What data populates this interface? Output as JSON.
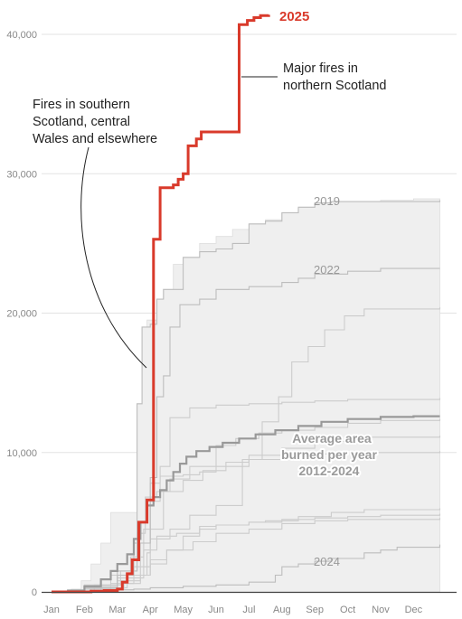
{
  "chart_data": {
    "type": "line",
    "step": true,
    "title": "",
    "xlabel": "",
    "ylabel": "",
    "x_categories": [
      "Jan",
      "Feb",
      "Mar",
      "Apr",
      "May",
      "Jun",
      "Jul",
      "Aug",
      "Sep",
      "Oct",
      "Nov",
      "Dec"
    ],
    "ylim": [
      0,
      42000
    ],
    "y_ticks": [
      0,
      10000,
      20000,
      30000,
      40000
    ],
    "y_tick_labels": [
      "0",
      "10,000",
      "20,000",
      "30,000",
      "40,000"
    ],
    "grid": "horizontal",
    "range_band": {
      "upper": [
        [
          0,
          0
        ],
        [
          0.3,
          50
        ],
        [
          0.6,
          200
        ],
        [
          0.9,
          800
        ],
        [
          1.2,
          2000
        ],
        [
          1.5,
          3500
        ],
        [
          1.8,
          5700
        ],
        [
          2.3,
          5700
        ],
        [
          2.6,
          13500
        ],
        [
          2.75,
          19000
        ],
        [
          2.9,
          19500
        ],
        [
          3.2,
          21000
        ],
        [
          3.4,
          21700
        ],
        [
          3.7,
          23500
        ],
        [
          4.0,
          24000
        ],
        [
          4.5,
          25000
        ],
        [
          5.0,
          25500
        ],
        [
          5.5,
          26000
        ],
        [
          6.0,
          26400
        ],
        [
          6.5,
          26700
        ],
        [
          7.0,
          27200
        ],
        [
          7.5,
          27600
        ],
        [
          8.0,
          27900
        ],
        [
          8.5,
          28000
        ],
        [
          9.0,
          28000
        ],
        [
          10.0,
          28100
        ],
        [
          11.0,
          28200
        ],
        [
          11.8,
          28200
        ]
      ],
      "lower": [
        [
          0,
          0
        ],
        [
          11.8,
          0
        ]
      ]
    },
    "series": [
      {
        "name": "2025",
        "color": "#d93a2b",
        "values": [
          [
            0,
            0
          ],
          [
            1.2,
            50
          ],
          [
            1.6,
            100
          ],
          [
            2.0,
            200
          ],
          [
            2.15,
            700
          ],
          [
            2.3,
            1300
          ],
          [
            2.45,
            2300
          ],
          [
            2.65,
            5000
          ],
          [
            2.9,
            6600
          ],
          [
            3.1,
            25300
          ],
          [
            3.3,
            29000
          ],
          [
            3.7,
            29200
          ],
          [
            3.85,
            29600
          ],
          [
            4.0,
            30000
          ],
          [
            4.15,
            32000
          ],
          [
            4.4,
            32500
          ],
          [
            4.55,
            33000
          ],
          [
            5.0,
            33000
          ],
          [
            5.3,
            33000
          ],
          [
            5.6,
            33000
          ],
          [
            5.7,
            40700
          ],
          [
            5.95,
            41000
          ],
          [
            6.15,
            41200
          ],
          [
            6.35,
            41350
          ],
          [
            6.6,
            41400
          ]
        ]
      },
      {
        "name": "Average area burned per year 2012-2024",
        "color": "#999999",
        "values": [
          [
            0,
            0
          ],
          [
            0.5,
            100
          ],
          [
            1.0,
            400
          ],
          [
            1.5,
            900
          ],
          [
            1.8,
            1500
          ],
          [
            2.0,
            2000
          ],
          [
            2.3,
            2700
          ],
          [
            2.5,
            3800
          ],
          [
            2.7,
            5000
          ],
          [
            2.9,
            6200
          ],
          [
            3.1,
            6800
          ],
          [
            3.3,
            7300
          ],
          [
            3.5,
            8000
          ],
          [
            3.7,
            8600
          ],
          [
            3.9,
            9200
          ],
          [
            4.1,
            9700
          ],
          [
            4.4,
            10100
          ],
          [
            4.8,
            10400
          ],
          [
            5.2,
            10700
          ],
          [
            5.7,
            11000
          ],
          [
            6.2,
            11300
          ],
          [
            6.8,
            11600
          ],
          [
            7.5,
            11900
          ],
          [
            8.2,
            12200
          ],
          [
            9.0,
            12400
          ],
          [
            10.0,
            12550
          ],
          [
            11.0,
            12600
          ],
          [
            11.8,
            12600
          ]
        ]
      },
      {
        "name": "2019",
        "color": "#bdbdbd",
        "values": [
          [
            0,
            0
          ],
          [
            1.0,
            200
          ],
          [
            2.0,
            1500
          ],
          [
            2.6,
            13500
          ],
          [
            2.75,
            19000
          ],
          [
            3.0,
            19200
          ],
          [
            3.2,
            21000
          ],
          [
            3.4,
            21700
          ],
          [
            4.0,
            24000
          ],
          [
            4.5,
            24400
          ],
          [
            5.0,
            24600
          ],
          [
            5.5,
            25000
          ],
          [
            6.0,
            26400
          ],
          [
            6.5,
            26600
          ],
          [
            7.0,
            27200
          ],
          [
            7.5,
            27600
          ],
          [
            8.0,
            27900
          ],
          [
            8.5,
            28000
          ],
          [
            11.8,
            28100
          ]
        ]
      },
      {
        "name": "2022",
        "color": "#bdbdbd",
        "values": [
          [
            0,
            0
          ],
          [
            1.0,
            300
          ],
          [
            2.0,
            1200
          ],
          [
            2.5,
            3500
          ],
          [
            3.0,
            8200
          ],
          [
            3.2,
            14000
          ],
          [
            3.4,
            15500
          ],
          [
            3.6,
            19000
          ],
          [
            3.9,
            20600
          ],
          [
            4.5,
            21000
          ],
          [
            5.0,
            21700
          ],
          [
            6.0,
            21900
          ],
          [
            7.0,
            22200
          ],
          [
            7.5,
            22500
          ],
          [
            8.0,
            22800
          ],
          [
            9.0,
            23000
          ],
          [
            10.0,
            23200
          ],
          [
            11.8,
            23200
          ]
        ]
      },
      {
        "name": "2024",
        "color": "#bdbdbd",
        "values": [
          [
            0,
            0
          ],
          [
            1.0,
            50
          ],
          [
            2.0,
            150
          ],
          [
            2.5,
            200
          ],
          [
            3.0,
            300
          ],
          [
            4.0,
            400
          ],
          [
            5.0,
            500
          ],
          [
            6.0,
            700
          ],
          [
            6.8,
            1200
          ],
          [
            7.0,
            1800
          ],
          [
            7.5,
            2000
          ],
          [
            8.0,
            2200
          ],
          [
            8.5,
            2400
          ],
          [
            9.5,
            2800
          ],
          [
            10.0,
            3000
          ],
          [
            10.5,
            3200
          ],
          [
            11.8,
            3400
          ]
        ]
      },
      {
        "name": "",
        "color": "#cccccc",
        "values": [
          [
            0,
            0
          ],
          [
            1.0,
            500
          ],
          [
            1.8,
            1200
          ],
          [
            2.4,
            2500
          ],
          [
            2.8,
            4500
          ],
          [
            3.0,
            7800
          ],
          [
            3.3,
            8300
          ],
          [
            4.0,
            8400
          ],
          [
            4.5,
            8600
          ],
          [
            5.0,
            9000
          ],
          [
            6.0,
            9500
          ],
          [
            7.0,
            9800
          ],
          [
            8.0,
            9900
          ],
          [
            9.0,
            10000
          ],
          [
            11.8,
            10100
          ]
        ]
      },
      {
        "name": "",
        "color": "#cccccc",
        "values": [
          [
            0,
            0
          ],
          [
            1.5,
            200
          ],
          [
            2.2,
            600
          ],
          [
            2.7,
            1200
          ],
          [
            3.0,
            2000
          ],
          [
            3.5,
            3000
          ],
          [
            4.0,
            4000
          ],
          [
            4.5,
            4500
          ],
          [
            5.0,
            4800
          ],
          [
            6.0,
            5000
          ],
          [
            7.0,
            5200
          ],
          [
            8.0,
            5300
          ],
          [
            9.0,
            5400
          ],
          [
            10.0,
            5500
          ],
          [
            11.8,
            5600
          ]
        ]
      },
      {
        "name": "",
        "color": "#cccccc",
        "values": [
          [
            0,
            0
          ],
          [
            1.0,
            300
          ],
          [
            2.0,
            1000
          ],
          [
            2.8,
            3000
          ],
          [
            3.2,
            4000
          ],
          [
            3.8,
            4200
          ],
          [
            4.5,
            4700
          ],
          [
            5.0,
            4800
          ],
          [
            6.0,
            5000
          ],
          [
            6.5,
            5100
          ],
          [
            7.5,
            5400
          ],
          [
            8.5,
            5700
          ],
          [
            9.5,
            5900
          ],
          [
            11.8,
            6000
          ]
        ]
      },
      {
        "name": "",
        "color": "#cccccc",
        "values": [
          [
            0,
            0
          ],
          [
            1.2,
            200
          ],
          [
            2.0,
            800
          ],
          [
            2.7,
            3500
          ],
          [
            3.0,
            6500
          ],
          [
            3.3,
            9000
          ],
          [
            3.6,
            12500
          ],
          [
            4.2,
            13200
          ],
          [
            5.0,
            13400
          ],
          [
            6.0,
            13500
          ],
          [
            7.0,
            13600
          ],
          [
            8.0,
            13700
          ],
          [
            9.0,
            13800
          ],
          [
            11.8,
            13900
          ]
        ]
      },
      {
        "name": "",
        "color": "#cccccc",
        "values": [
          [
            0,
            0
          ],
          [
            1.0,
            400
          ],
          [
            2.0,
            1200
          ],
          [
            2.9,
            2800
          ],
          [
            3.0,
            3800
          ],
          [
            3.6,
            4500
          ],
          [
            4.2,
            5500
          ],
          [
            5.0,
            6200
          ],
          [
            5.8,
            9500
          ],
          [
            6.4,
            12200
          ],
          [
            6.9,
            14000
          ],
          [
            7.3,
            16500
          ],
          [
            7.8,
            17600
          ],
          [
            8.3,
            18800
          ],
          [
            8.9,
            19800
          ],
          [
            9.5,
            20300
          ],
          [
            11.8,
            20400
          ]
        ]
      },
      {
        "name": "",
        "color": "#cccccc",
        "values": [
          [
            0,
            0
          ],
          [
            1.3,
            500
          ],
          [
            2.1,
            1500
          ],
          [
            2.6,
            4200
          ],
          [
            2.85,
            6800
          ],
          [
            3.2,
            7200
          ],
          [
            3.6,
            8100
          ],
          [
            4.2,
            9000
          ],
          [
            5.0,
            10500
          ],
          [
            5.6,
            11000
          ],
          [
            6.3,
            11400
          ],
          [
            7.0,
            11600
          ],
          [
            8.0,
            11800
          ],
          [
            9.0,
            12100
          ],
          [
            10.0,
            12300
          ],
          [
            11.8,
            12400
          ]
        ]
      },
      {
        "name": "",
        "color": "#cccccc",
        "values": [
          [
            0,
            0
          ],
          [
            1.0,
            200
          ],
          [
            1.8,
            600
          ],
          [
            2.5,
            1800
          ],
          [
            3.0,
            4500
          ],
          [
            3.4,
            7200
          ],
          [
            4.0,
            8000
          ],
          [
            4.6,
            8700
          ],
          [
            5.3,
            9300
          ],
          [
            6.0,
            9800
          ],
          [
            7.0,
            10300
          ],
          [
            8.0,
            10800
          ],
          [
            9.0,
            11100
          ],
          [
            11.8,
            11200
          ]
        ]
      },
      {
        "name": "",
        "color": "#cccccc",
        "values": [
          [
            0,
            0
          ],
          [
            1.5,
            300
          ],
          [
            2.3,
            1200
          ],
          [
            3.0,
            2300
          ],
          [
            3.5,
            3000
          ],
          [
            4.3,
            3600
          ],
          [
            5.0,
            4200
          ],
          [
            6.0,
            4500
          ],
          [
            7.0,
            4900
          ],
          [
            8.0,
            5100
          ],
          [
            9.0,
            5200
          ],
          [
            11.8,
            5300
          ]
        ]
      }
    ],
    "labels": {
      "series_2025": "2025",
      "year_2019": "2019",
      "year_2022": "2022",
      "year_2024": "2024",
      "average_lines": [
        "Average area",
        "burned per year",
        "2012-2024"
      ]
    },
    "annotations": [
      {
        "id": "northern",
        "lines": [
          "Major fires in",
          "northern Scotland"
        ]
      },
      {
        "id": "southern",
        "lines": [
          "Fires in southern",
          "Scotland, central",
          "Wales and elsewhere"
        ]
      }
    ]
  }
}
